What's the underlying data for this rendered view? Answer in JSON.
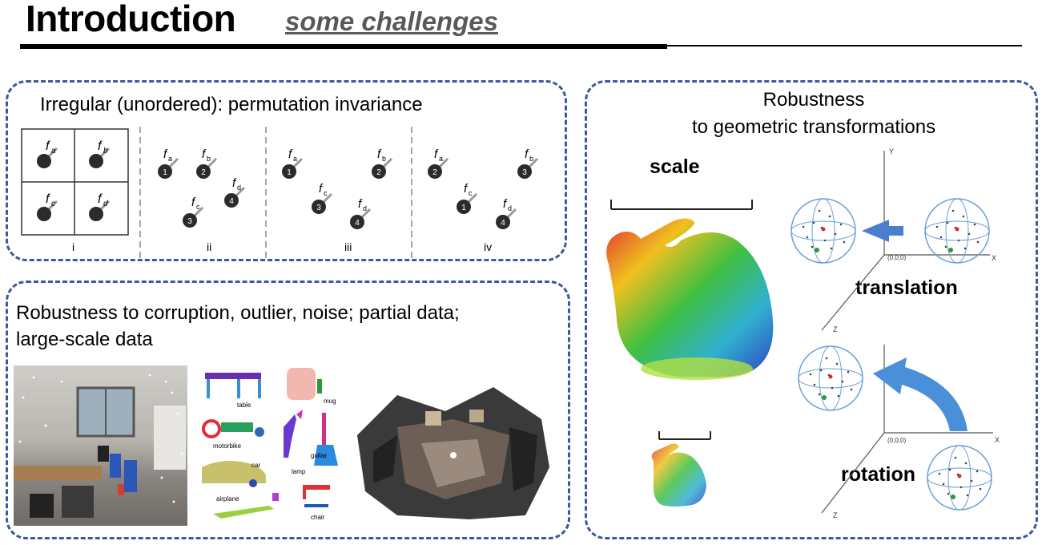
{
  "header": {
    "title": "Introduction",
    "subtitle": "some challenges"
  },
  "perm_panel": {
    "heading": "Irregular (unordered): permutation invariance",
    "grid_labels": [
      "f",
      "f",
      "f",
      "f"
    ],
    "grid_subscripts": [
      "a",
      "b",
      "c",
      "d"
    ],
    "groups": [
      {
        "roman": "i"
      },
      {
        "roman": "ii",
        "points": [
          {
            "f": "a",
            "n": "1"
          },
          {
            "f": "b",
            "n": "2"
          },
          {
            "f": "d",
            "n": "4"
          },
          {
            "f": "c",
            "n": "3"
          }
        ]
      },
      {
        "roman": "iii",
        "points": [
          {
            "f": "a",
            "n": "1"
          },
          {
            "f": "b",
            "n": "2"
          },
          {
            "f": "c",
            "n": "3"
          },
          {
            "f": "d",
            "n": "4"
          }
        ]
      },
      {
        "roman": "iv",
        "points": [
          {
            "f": "a",
            "n": "2"
          },
          {
            "f": "b",
            "n": "3"
          },
          {
            "f": "c",
            "n": "1"
          },
          {
            "f": "d",
            "n": "4"
          }
        ]
      }
    ]
  },
  "robust_panel": {
    "heading_line1": "Robustness to corruption, outlier, noise; partial data;",
    "heading_line2": "large-scale data",
    "object_labels": {
      "table": "table",
      "mug": "mug",
      "motorbike": "motorbike",
      "car": "car",
      "lamp": "lamp",
      "guitar": "guitar",
      "airplane": "airplane",
      "chair": "chair"
    }
  },
  "geo_panel": {
    "heading_line1": "Robustness",
    "heading_line2": "to geometric transformations",
    "scale_label": "scale",
    "translation_label": "translation",
    "rotation_label": "rotation",
    "axes": {
      "y": "Y",
      "x": "X",
      "z": "Z",
      "origin": "(0,0,0)"
    }
  },
  "colors": {
    "panel_border": "#3a5a9c",
    "arrow": "#4a7fd0",
    "subtitle": "#595959"
  }
}
